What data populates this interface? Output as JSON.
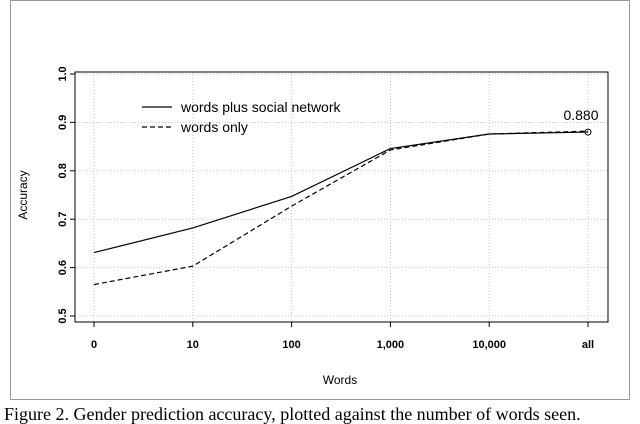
{
  "chart_data": {
    "type": "line",
    "title": "",
    "xlabel": "Words",
    "ylabel": "Accuracy",
    "categories": [
      "0",
      "10",
      "100",
      "1,000",
      "10,000",
      "all"
    ],
    "ylim": [
      0.5,
      1.0
    ],
    "yticks": [
      "0.5",
      "0.6",
      "0.7",
      "0.8",
      "0.9",
      "1.0"
    ],
    "grid": true,
    "legend_position": "top-left",
    "series": [
      {
        "name": "words plus social network",
        "style": "solid",
        "values": [
          0.631,
          0.682,
          0.747,
          0.846,
          0.876,
          0.88
        ]
      },
      {
        "name": "words only",
        "style": "dashed",
        "values": [
          0.565,
          0.603,
          0.727,
          0.843,
          0.876,
          0.882
        ]
      }
    ],
    "annotation": {
      "text": "0.880",
      "category": "all",
      "value": 0.88,
      "marker": "open-circle"
    }
  },
  "caption": "Figure 2. Gender prediction accuracy, plotted against the number of words seen."
}
